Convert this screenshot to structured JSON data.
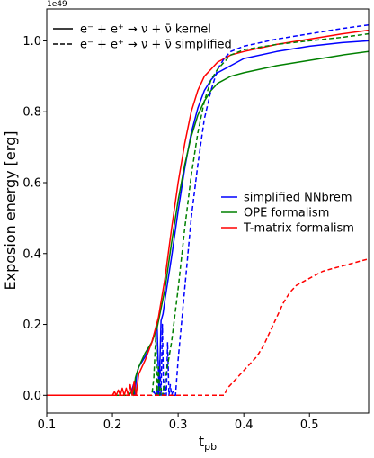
{
  "chart_data": {
    "type": "line",
    "xlabel": "t",
    "xlabel_sub": "pb",
    "ylabel": "Exposion energy [erg]",
    "offset_text": "1e49",
    "xlim": [
      0.1,
      0.59
    ],
    "ylim": [
      -0.05,
      1.09
    ],
    "xticks": [
      0.1,
      0.2,
      0.3,
      0.4,
      0.5
    ],
    "xtick_labels": [
      "0.1",
      "0.2",
      "0.3",
      "0.4",
      "0.5"
    ],
    "yticks": [
      0.0,
      0.2,
      0.4,
      0.6,
      0.8,
      1.0
    ],
    "ytick_labels": [
      "0.0",
      "0.2",
      "0.4",
      "0.6",
      "0.8",
      "1.0"
    ],
    "grid": false,
    "legend_styles": {
      "location": "upper-left",
      "entries": [
        {
          "label": "e⁻ + e⁺ → ν + ν̄ kernel",
          "style": "solid"
        },
        {
          "label": "e⁻ + e⁺ → ν + ν̄ simplified",
          "style": "dashed"
        }
      ]
    },
    "legend_colors": {
      "location": "center-right",
      "entries": [
        {
          "label": "simplified NNbrem",
          "color": "#0000ff"
        },
        {
          "label": "OPE formalism",
          "color": "#008000"
        },
        {
          "label": "T-matrix formalism",
          "color": "#ff0000"
        }
      ]
    },
    "series": [
      {
        "color": "#0000ff",
        "style": "solid",
        "x": [
          0.1,
          0.225,
          0.229,
          0.232,
          0.234,
          0.237,
          0.24,
          0.25,
          0.26,
          0.268,
          0.271,
          0.274,
          0.277,
          0.28,
          0.29,
          0.3,
          0.31,
          0.32,
          0.33,
          0.34,
          0.35,
          0.36,
          0.38,
          0.4,
          0.45,
          0.5,
          0.55,
          0.59
        ],
        "y": [
          0.0,
          0.0,
          0.01,
          0.03,
          0.0,
          0.06,
          0.08,
          0.11,
          0.15,
          0.2,
          0.0,
          0.21,
          0.23,
          0.27,
          0.39,
          0.52,
          0.64,
          0.74,
          0.81,
          0.86,
          0.89,
          0.91,
          0.93,
          0.95,
          0.97,
          0.985,
          0.995,
          1.0
        ]
      },
      {
        "color": "#008000",
        "style": "solid",
        "x": [
          0.1,
          0.225,
          0.229,
          0.232,
          0.235,
          0.24,
          0.25,
          0.26,
          0.268,
          0.28,
          0.29,
          0.3,
          0.31,
          0.32,
          0.33,
          0.34,
          0.35,
          0.36,
          0.38,
          0.4,
          0.45,
          0.5,
          0.55,
          0.59
        ],
        "y": [
          0.0,
          0.0,
          0.01,
          0.0,
          0.05,
          0.08,
          0.12,
          0.15,
          0.19,
          0.3,
          0.43,
          0.55,
          0.65,
          0.73,
          0.79,
          0.83,
          0.86,
          0.88,
          0.9,
          0.91,
          0.93,
          0.945,
          0.96,
          0.97
        ]
      },
      {
        "color": "#ff0000",
        "style": "solid",
        "x": [
          0.1,
          0.2,
          0.203,
          0.206,
          0.209,
          0.212,
          0.215,
          0.218,
          0.221,
          0.224,
          0.227,
          0.23,
          0.233,
          0.236,
          0.24,
          0.25,
          0.26,
          0.27,
          0.28,
          0.29,
          0.3,
          0.31,
          0.32,
          0.33,
          0.34,
          0.35,
          0.36,
          0.38,
          0.4,
          0.45,
          0.5,
          0.55,
          0.59
        ],
        "y": [
          0.0,
          0.0,
          0.01,
          0.0,
          0.015,
          0.0,
          0.02,
          0.0,
          0.02,
          0.0,
          0.03,
          0.0,
          0.04,
          0.0,
          0.06,
          0.1,
          0.15,
          0.22,
          0.33,
          0.47,
          0.6,
          0.71,
          0.8,
          0.86,
          0.9,
          0.92,
          0.94,
          0.96,
          0.97,
          0.99,
          1.005,
          1.02,
          1.03
        ]
      },
      {
        "color": "#0000ff",
        "style": "dashed",
        "x": [
          0.1,
          0.26,
          0.263,
          0.266,
          0.268,
          0.27,
          0.272,
          0.274,
          0.276,
          0.278,
          0.28,
          0.282,
          0.284,
          0.286,
          0.288,
          0.29,
          0.292,
          0.294,
          0.296,
          0.3,
          0.31,
          0.32,
          0.33,
          0.34,
          0.35,
          0.36,
          0.37,
          0.38,
          0.4,
          0.45,
          0.5,
          0.55,
          0.59
        ],
        "y": [
          0.0,
          0.0,
          0.01,
          0.0,
          0.02,
          0.0,
          0.1,
          0.0,
          0.2,
          0.0,
          0.04,
          0.0,
          0.15,
          0.0,
          0.03,
          0.0,
          0.01,
          0.0,
          0.0,
          0.1,
          0.3,
          0.5,
          0.65,
          0.78,
          0.86,
          0.92,
          0.95,
          0.97,
          0.985,
          1.005,
          1.02,
          1.035,
          1.045
        ]
      },
      {
        "color": "#008000",
        "style": "dashed",
        "x": [
          0.1,
          0.26,
          0.263,
          0.266,
          0.268,
          0.27,
          0.272,
          0.274,
          0.276,
          0.28,
          0.29,
          0.3,
          0.31,
          0.32,
          0.33,
          0.34,
          0.35,
          0.36,
          0.37,
          0.38,
          0.4,
          0.45,
          0.5,
          0.55,
          0.59
        ],
        "y": [
          0.0,
          0.0,
          0.05,
          0.17,
          0.0,
          0.08,
          0.0,
          0.02,
          0.0,
          0.04,
          0.15,
          0.3,
          0.47,
          0.62,
          0.74,
          0.83,
          0.89,
          0.92,
          0.94,
          0.96,
          0.975,
          0.99,
          1.0,
          1.01,
          1.02
        ]
      },
      {
        "color": "#ff0000",
        "style": "dashed",
        "x": [
          0.1,
          0.37,
          0.375,
          0.38,
          0.39,
          0.4,
          0.41,
          0.42,
          0.43,
          0.44,
          0.45,
          0.46,
          0.47,
          0.48,
          0.5,
          0.52,
          0.54,
          0.56,
          0.58,
          0.59
        ],
        "y": [
          0.0,
          0.0,
          0.02,
          0.03,
          0.05,
          0.07,
          0.09,
          0.11,
          0.14,
          0.18,
          0.22,
          0.26,
          0.29,
          0.31,
          0.33,
          0.35,
          0.36,
          0.37,
          0.38,
          0.385
        ]
      }
    ]
  }
}
